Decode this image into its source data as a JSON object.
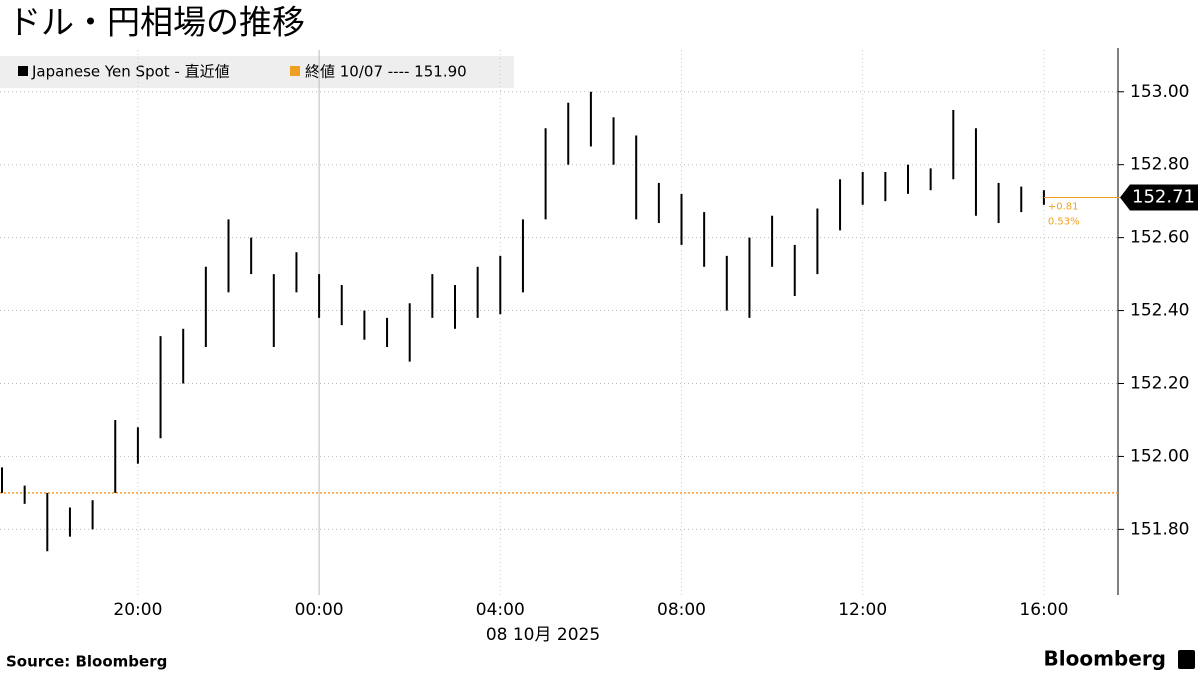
{
  "chart_data": {
    "type": "range-bar",
    "title": "ドル・円相場の推移",
    "legend_label": "Japanese Yen Spot - 直近値",
    "reference_label": "終値 10/07 ---- 151.90",
    "date_label": "08 10月 2025",
    "source": "Source:  Bloomberg",
    "brand": "Bloomberg",
    "change_labels": [
      "+0.81",
      "0.53%"
    ],
    "last": {
      "value": 152.71,
      "label": "152.71"
    },
    "reference": {
      "value": 151.9,
      "color": "#f0a020"
    },
    "color": "#000000",
    "grid": true,
    "categories": [
      null,
      null,
      null,
      null,
      null,
      null,
      "20:00",
      null,
      null,
      null,
      null,
      null,
      null,
      null,
      "00:00",
      null,
      null,
      null,
      null,
      null,
      null,
      null,
      "04:00",
      null,
      null,
      null,
      null,
      null,
      null,
      null,
      "08:00",
      null,
      null,
      null,
      null,
      null,
      null,
      null,
      "12:00",
      null,
      null,
      null,
      null,
      null,
      null,
      null,
      "16:00"
    ],
    "high": [
      151.97,
      151.92,
      151.9,
      151.86,
      151.88,
      152.1,
      152.08,
      152.33,
      152.35,
      152.52,
      152.65,
      152.6,
      152.5,
      152.56,
      152.5,
      152.47,
      152.4,
      152.38,
      152.42,
      152.5,
      152.47,
      152.52,
      152.55,
      152.65,
      152.9,
      152.97,
      153.0,
      152.93,
      152.88,
      152.75,
      152.72,
      152.67,
      152.55,
      152.6,
      152.66,
      152.58,
      152.68,
      152.76,
      152.78,
      152.78,
      152.8,
      152.79,
      152.95,
      152.9,
      152.75,
      152.74,
      152.73
    ],
    "low": [
      151.9,
      151.87,
      151.74,
      151.78,
      151.8,
      151.9,
      151.98,
      152.05,
      152.2,
      152.3,
      152.45,
      152.5,
      152.3,
      152.45,
      152.38,
      152.36,
      152.32,
      152.3,
      152.26,
      152.38,
      152.35,
      152.38,
      152.39,
      152.45,
      152.65,
      152.8,
      152.85,
      152.8,
      152.65,
      152.64,
      152.58,
      152.52,
      152.4,
      152.38,
      152.52,
      152.44,
      152.5,
      152.62,
      152.69,
      152.7,
      152.72,
      152.73,
      152.76,
      152.66,
      152.64,
      152.67,
      152.69
    ],
    "ylim": [
      151.62,
      153.12
    ],
    "yticks": [
      {
        "value": 151.8,
        "label": "151.80"
      },
      {
        "value": 152.0,
        "label": "152.00"
      },
      {
        "value": 152.2,
        "label": "152.20"
      },
      {
        "value": 152.4,
        "label": "152.40"
      },
      {
        "value": 152.6,
        "label": "152.60"
      },
      {
        "value": 152.8,
        "label": "152.80"
      },
      {
        "value": 153.0,
        "label": "153.00"
      }
    ]
  }
}
